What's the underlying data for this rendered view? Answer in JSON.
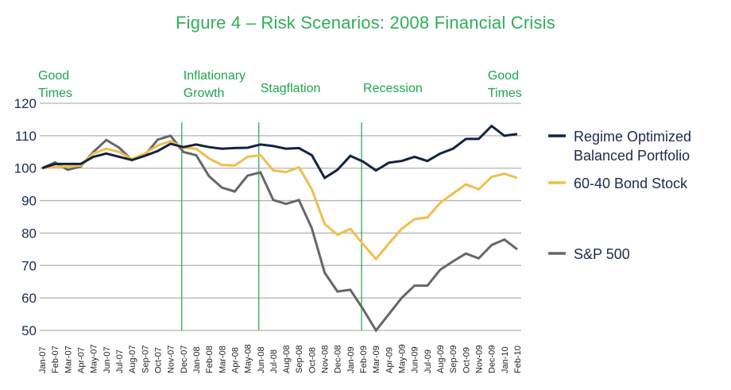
{
  "chart_data": {
    "type": "line",
    "title": "Figure 4 – Risk Scenarios: 2008 Financial Crisis",
    "xlabel": "",
    "ylabel": "",
    "ylim": [
      50,
      120
    ],
    "yticks": [
      50,
      60,
      70,
      80,
      90,
      100,
      110,
      120
    ],
    "grid": true,
    "legend_position": "right",
    "categories": [
      "Jan-07",
      "Feb-07",
      "Mar-07",
      "Apr-07",
      "May-07",
      "Jun-07",
      "Jul-07",
      "Aug-07",
      "Sep-07",
      "Oct-07",
      "Nov-07",
      "Dec-07",
      "Jan-08",
      "Feb-08",
      "Mar-08",
      "Apr-08",
      "May-08",
      "Jun-08",
      "Jul-08",
      "Aug-08",
      "Sep-08",
      "Oct-08",
      "Nov-08",
      "Dec-08",
      "Jan-09",
      "Feb-09",
      "Mar-09",
      "Apr-09",
      "May-09",
      "Jun-09",
      "Jul-09",
      "Aug-09",
      "Sep-09",
      "Oct-09",
      "Nov-09",
      "Dec-09",
      "Jan-10",
      "Feb-10"
    ],
    "series": [
      {
        "name": "Regime Optimized Balanced Portfolio",
        "legend_lines": [
          "Regime Optimized",
          "Balanced Portfolio"
        ],
        "color": "#13233f",
        "values": [
          100,
          101.3,
          101.3,
          101.3,
          103.5,
          104.5,
          103.5,
          102.5,
          103.8,
          105.3,
          107.5,
          106.5,
          107.3,
          106.5,
          106,
          106.2,
          106.3,
          107.3,
          106.8,
          106,
          106.2,
          104,
          97,
          99.5,
          103.8,
          102,
          99.3,
          101.7,
          102.2,
          103.5,
          102.2,
          104.5,
          106,
          109,
          109,
          113,
          110,
          110.5
        ]
      },
      {
        "name": "60-40 Bond Stock",
        "legend_lines": [
          "60-40 Bond Stock"
        ],
        "color": "#f0be4e",
        "values": [
          100,
          100.5,
          100.5,
          100.8,
          104.5,
          106,
          105,
          102.8,
          104.5,
          107,
          108.3,
          106.3,
          106,
          103,
          101,
          100.8,
          103.5,
          104,
          99.3,
          98.8,
          100.3,
          93.5,
          82.8,
          79.5,
          81.3,
          76.5,
          72,
          76.8,
          81.3,
          84.3,
          84.8,
          89.3,
          92.2,
          95,
          93.5,
          97.3,
          98.3,
          97
        ]
      },
      {
        "name": "S&P 500",
        "legend_lines": [
          "S&P 500"
        ],
        "color": "#666666",
        "values": [
          100,
          101.8,
          99.5,
          100.5,
          105,
          108.7,
          106.3,
          102.5,
          104,
          108.8,
          110,
          105,
          104,
          97.5,
          94,
          92.8,
          97.7,
          98.7,
          90.2,
          89,
          90.2,
          81.5,
          67.8,
          62,
          62.5,
          56.5,
          50,
          55,
          60,
          63.8,
          63.8,
          68.7,
          71.3,
          73.7,
          72.2,
          76.3,
          78,
          75
        ]
      }
    ],
    "annotations": [
      {
        "lines": [
          "Good",
          "Times"
        ],
        "at": "Jan-07",
        "divider": false
      },
      {
        "lines": [
          "Inflationary",
          "Growth"
        ],
        "at": "Dec-07",
        "divider": true
      },
      {
        "lines": [
          "Stagflation"
        ],
        "at": "Jun-08",
        "divider": true
      },
      {
        "lines": [
          "Recession"
        ],
        "at": "Feb-09",
        "divider": true
      },
      {
        "lines": [
          "Good",
          "Times"
        ],
        "at": "Jan-10",
        "divider": false
      }
    ],
    "colors": {
      "title": "#2fae5a",
      "annotation": "#1fa44e",
      "divider": "#1fa44e",
      "grid": "#b3b3b3",
      "tick": "#1d2b4a"
    }
  }
}
